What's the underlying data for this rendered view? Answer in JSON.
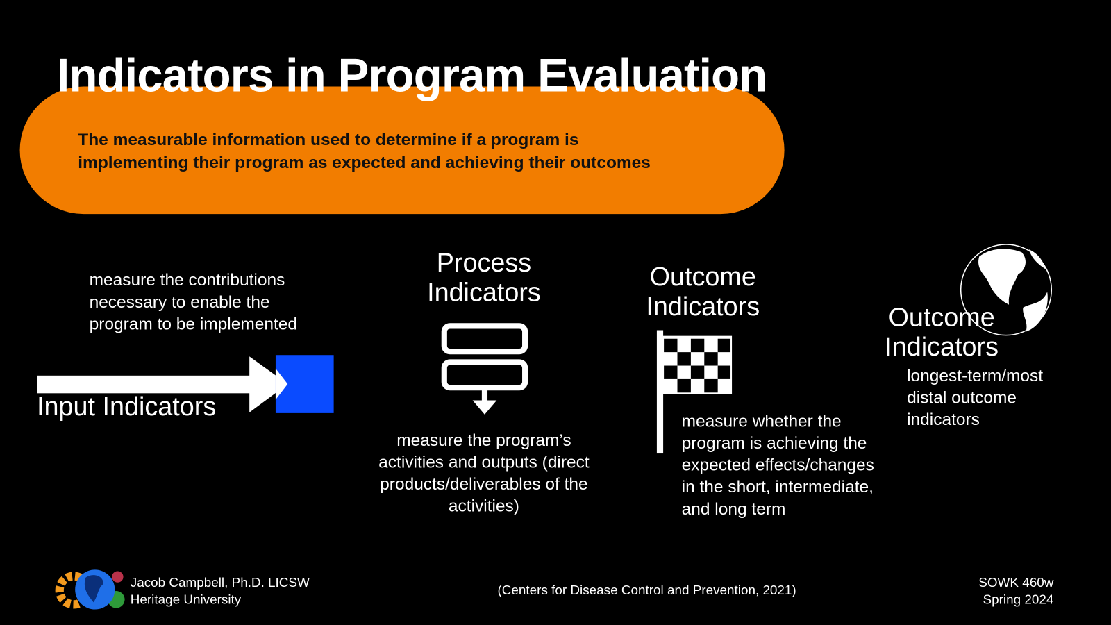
{
  "slide": {
    "title": "Indicators in Program Evaluation",
    "definition": "The measurable information used to determine if a program is\nimplementing their program as expected and achieving their outcomes",
    "accent_color": "#F27D00",
    "input": {
      "label": "Input Indicators",
      "description": "measure the contributions\nnecessary to enable the\nprogram to be implemented",
      "icon": "arrow-right-icon"
    },
    "process": {
      "label": "Process\nIndicators",
      "description": "measure the program’s\nactivities and outputs (direct\nproducts/deliverables of the\nactivities)",
      "icon": "flowchart-icon"
    },
    "outcome": {
      "label": "Outcome\nIndicators",
      "description": "measure whether the\nprogram is achieving the\nexpected effects/changes\nin the short, intermediate,\nand long term",
      "icon": "checkered-flag-icon"
    },
    "impact": {
      "label": "Outcome\nIndicators",
      "description": "longest-term/most\ndistal outcome\nindicators",
      "icon": "globe-icon"
    }
  },
  "footer": {
    "author": "Jacob Campbell, Ph.D. LICSW",
    "institution": "Heritage University",
    "citation": "(Centers for Disease Control and Prevention, 2021)",
    "course": "SOWK 460w",
    "term": "Spring 2024"
  }
}
